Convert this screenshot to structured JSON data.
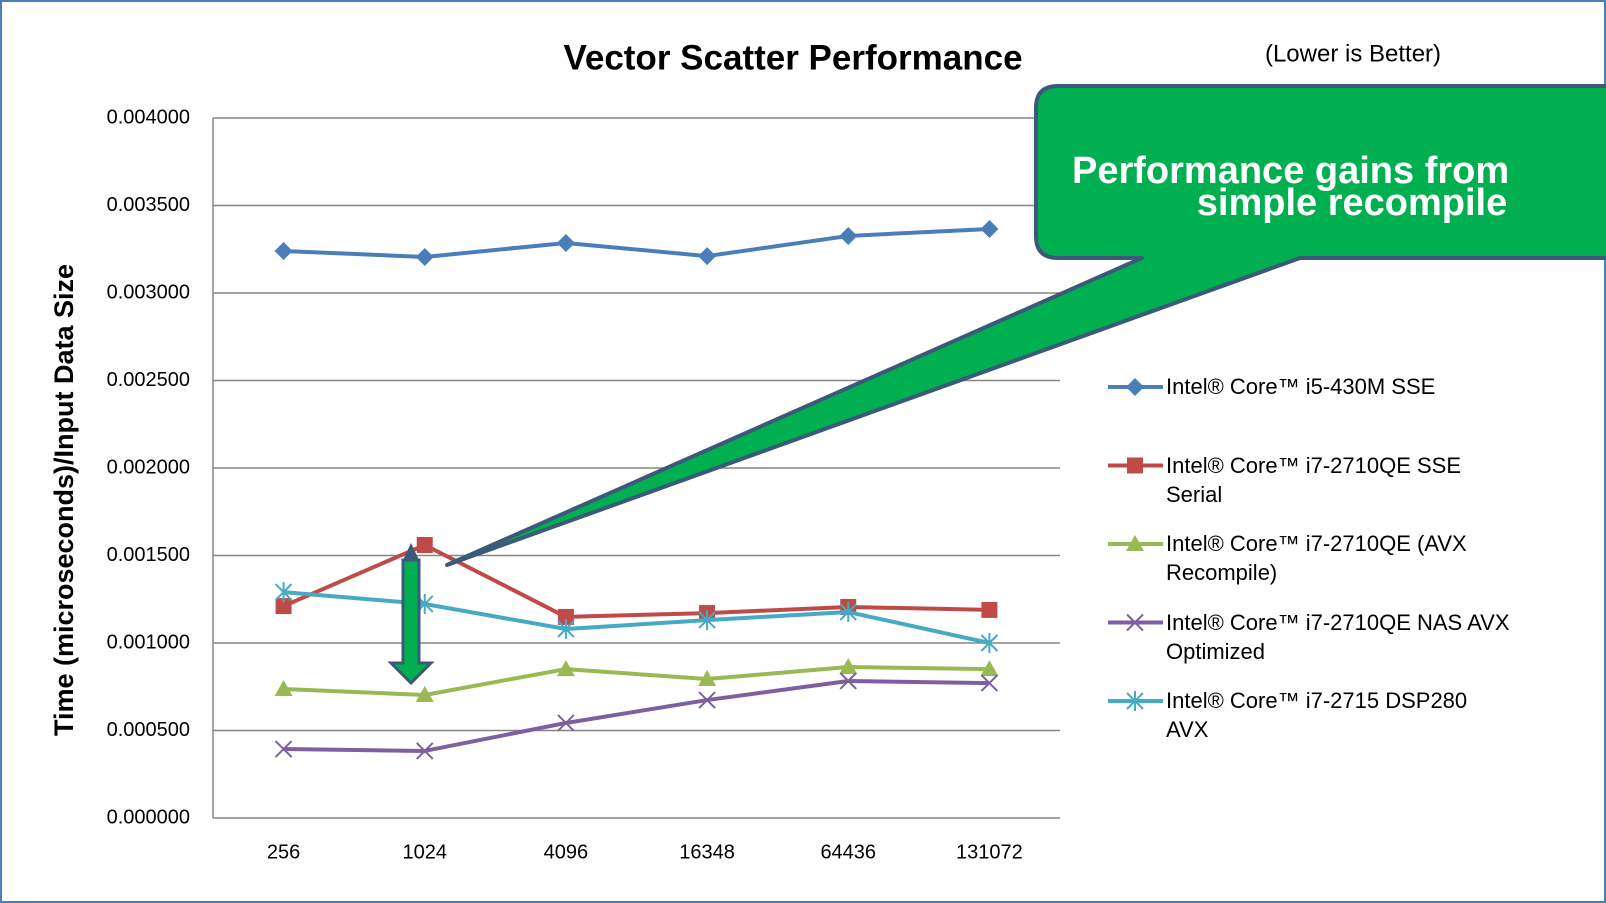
{
  "chart_data": {
    "type": "line",
    "title": "Vector Scatter Performance",
    "subtitle": "(Lower is Better)",
    "callout": [
      "Performance gains from",
      "simple recompile"
    ],
    "y_label": "Time (microseconds)/Input Data Size",
    "categories": [
      "256",
      "1024",
      "4096",
      "16348",
      "64436",
      "131072"
    ],
    "ylim": [
      0,
      0.004
    ],
    "yticks": [
      {
        "value": 0,
        "label": "0.000000"
      },
      {
        "value": 0.0005,
        "label": "0.000500"
      },
      {
        "value": 0.001,
        "label": "0.001000"
      },
      {
        "value": 0.0015,
        "label": "0.001500"
      },
      {
        "value": 0.002,
        "label": "0.002000"
      },
      {
        "value": 0.0025,
        "label": "0.002500"
      },
      {
        "value": 0.003,
        "label": "0.003000"
      },
      {
        "value": 0.0035,
        "label": "0.003500"
      },
      {
        "value": 0.004,
        "label": "0.004000"
      }
    ],
    "grid": true,
    "legend": "right",
    "series": [
      {
        "name": "Intel® Core™ i5-430M SSE",
        "color": "#4a7ebb",
        "marker": "diamond",
        "values": [
          0.00324,
          0.003206,
          0.003286,
          0.003211,
          0.003326,
          0.003366
        ]
      },
      {
        "name": "Intel® Core™ i7-2710QE SSE Serial",
        "color": "#be4b48",
        "marker": "square",
        "values": [
          0.001211,
          0.00156,
          0.001149,
          0.001171,
          0.001206,
          0.001189
        ]
      },
      {
        "name": "Intel® Core™ i7-2710QE (AVX Recompile)",
        "color": "#98b954",
        "marker": "triangle",
        "values": [
          0.000737,
          0.000703,
          0.000851,
          0.000794,
          0.000863,
          0.000851
        ]
      },
      {
        "name": "Intel® Core™ i7-2710QE NAS AVX Optimized",
        "color": "#7d60a0",
        "marker": "x",
        "values": [
          0.000394,
          0.000383,
          0.000543,
          0.000674,
          0.000783,
          0.000771
        ]
      },
      {
        "name": "Intel® Core™ i7-2715 DSP280 AVX",
        "color": "#46aac5",
        "marker": "star",
        "values": [
          0.001291,
          0.001223,
          0.00108,
          0.001131,
          0.001177,
          0.001
        ]
      }
    ]
  }
}
